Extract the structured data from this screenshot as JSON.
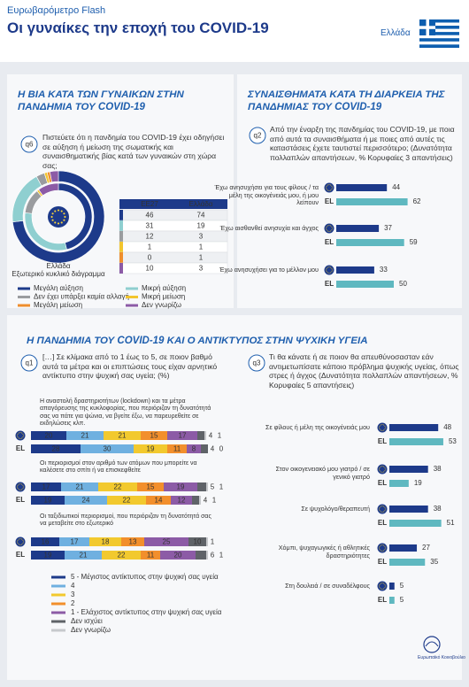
{
  "header": {
    "brand": "Ευρωβαρόμετρο Flash",
    "title": "Οι γυναίκες την εποχή του COVID-19",
    "country": "Ελλάδα"
  },
  "sections": [
    {
      "title": "Η ΒΙΑ ΚΑΤΑ ΤΩΝ ΓΥΝΑΙΚΩΝ ΣΤΗΝ ΠΑΝΔΗΜΙΑ ΤΟΥ COVID-19"
    },
    {
      "title": "ΣΥΝΑΙΣΘΗΜΑΤΑ ΚΑΤΑ ΤΗ ΔΙΑΡΚΕΙΑ ΤΗΣ ΠΑΝΔΗΜΙΑΣ ΤΟΥ COVID-19"
    },
    {
      "title": "Η ΠΑΝΔΗΜΙΑ ΤΟΥ COVID-19 ΚΑΙ Ο ΑΝΤΙΚΤΥΠΟΣ ΣΤΗΝ ΨΥΧΙΚΗ ΥΓΕΙΑ"
    }
  ],
  "footer": {
    "logo_text": "Ευρωπαϊκό Κοινοβούλιο"
  },
  "chart_data": [
    {
      "type": "donut",
      "question_id": "q6",
      "question": "Πιστεύετε ότι η πανδημία του COVID-19 έχει οδηγήσει σε αύξηση ή μείωση της σωματικής και συναισθηματικής βίας κατά των γυναικών στη χώρα σας;",
      "caption": "Ελλάδα",
      "subcaption": "Εξωτερικό κυκλικό διάγραμμα",
      "categories": [
        "Μεγάλη αύξηση",
        "Μικρή αύξηση",
        "Δεν έχει υπάρξει καμία αλλαγή",
        "Μικρή μείωση",
        "Μεγάλη μείωση",
        "Δεν γνωρίζω"
      ],
      "colors": [
        "#1d3a8a",
        "#8fcfd0",
        "#9a9c9f",
        "#f2c52e",
        "#ef8e2d",
        "#8c5ba6"
      ],
      "series": [
        {
          "name": "EE27",
          "values": [
            46,
            31,
            12,
            1,
            0,
            10
          ]
        },
        {
          "name": "Ελλάδα",
          "values": [
            74,
            19,
            3,
            1,
            1,
            3
          ]
        }
      ]
    },
    {
      "type": "bar",
      "question_id": "q2",
      "question": "Από την έναρξη της πανδημίας του COVID-19, με ποια από αυτά τα συναισθήματα ή με ποιες από αυτές τις καταστάσεις έχετε ταυτιστεί περισσότερο; (Δυνατότητα πολλαπλών απαντήσεων, % Κορυφαίες 3 απαντήσεις)",
      "categories": [
        "Έχω ανησυχήσει για τους φίλους / τα μέλη της οικογένειάς μου, ή μου λείπουν",
        "Έχω αισθανθεί ανησυχία και άγχος",
        "Έχω ανησυχήσει για το μέλλον μου"
      ],
      "series": [
        {
          "color": "#1d3a8a",
          "values": [
            44,
            37,
            33
          ]
        },
        {
          "name": "EL",
          "color": "#5fb8c0",
          "values": [
            62,
            59,
            50
          ]
        }
      ]
    },
    {
      "type": "stacked_bar",
      "question_id": "q1",
      "question": "[…] Σε κλίμακα από το 1 έως το 5, σε ποιον βαθμό αυτά τα μέτρα και οι επιπτώσεις τους είχαν αρνητικό αντίκτυπο στην ψυχική σας υγεία; (%)",
      "el_label": "EL",
      "categories": [
        "Η αναστολή δραστηριοτήτων (lockdown) και τα μέτρα απαγόρευσης της κυκλοφορίας, που περιόριζαν τη δυνατότητά σας να πάτε για ψώνια, να βγείτε έξω, να παρευρεθείτε σε εκδηλώσεις κλπ.",
        "Οι περιορισμοί στον αριθμό των ατόμων που μπορείτε να καλέσετε στο σπίτι ή να επισκεφθείτε",
        "Οι ταξιδιωτικοί περιορισμοί, που περιόριζαν τη δυνατότητά σας να μεταβείτε στο εξωτερικό"
      ],
      "series": [
        {
          "name": "5 - Μέγιστος αντίκτυπος στην ψυχική σας υγεία",
          "color": "#1d3a8a",
          "eu_values": [
            20,
            17,
            16
          ],
          "el_values": [
            28,
            19,
            19
          ]
        },
        {
          "name": "4",
          "color": "#6fb0e0",
          "eu_values": [
            21,
            21,
            17
          ],
          "el_values": [
            30,
            24,
            21
          ]
        },
        {
          "name": "3",
          "color": "#f2c92e",
          "eu_values": [
            21,
            22,
            18
          ],
          "el_values": [
            19,
            22,
            22
          ]
        },
        {
          "name": "2",
          "color": "#f28f2c",
          "eu_values": [
            15,
            15,
            13
          ],
          "el_values": [
            11,
            14,
            11
          ]
        },
        {
          "name": "1 - Ελάχιστος αντίκτυπος στην ψυχική σας υγεία",
          "color": "#8c5ba6",
          "eu_values": [
            17,
            19,
            25
          ],
          "el_values": [
            8,
            12,
            20
          ]
        },
        {
          "name": "Δεν ισχύει",
          "color": "#5f6368",
          "eu_values": [
            4,
            5,
            10
          ],
          "el_values": [
            4,
            4,
            6
          ]
        },
        {
          "name": "Δεν γνωρίζω",
          "color": "#c7c9cc",
          "eu_values": [
            1,
            1,
            1
          ],
          "el_values": [
            0,
            1,
            1
          ]
        }
      ]
    },
    {
      "type": "bar",
      "question_id": "q3",
      "question": "Τι θα κάνατε ή σε ποιον θα απευθύνοσασταν εάν αντιμετωπίσατε κάποιο πρόβλημα ψυχικής υγείας, όπως στρες ή άγχος (Δυνατότητα πολλαπλών απαντήσεων, % Κορυφαίες 5 απαντήσεις)",
      "categories": [
        "Σε φίλους ή μέλη της οικογένειάς μου",
        "Στον οικογενειακό μου γιατρό / σε γενικό γιατρό",
        "Σε ψυχολόγο/θεραπευτή",
        "Χόμπι, ψυχαγωγικές ή αθλητικές δραστηριότητες",
        "Στη δουλειά / σε συναδέλφους"
      ],
      "series": [
        {
          "color": "#1d3a8a",
          "values": [
            48,
            38,
            38,
            27,
            5
          ]
        },
        {
          "name": "EL",
          "color": "#5fb8c0",
          "values": [
            53,
            19,
            51,
            35,
            5
          ]
        }
      ]
    }
  ]
}
